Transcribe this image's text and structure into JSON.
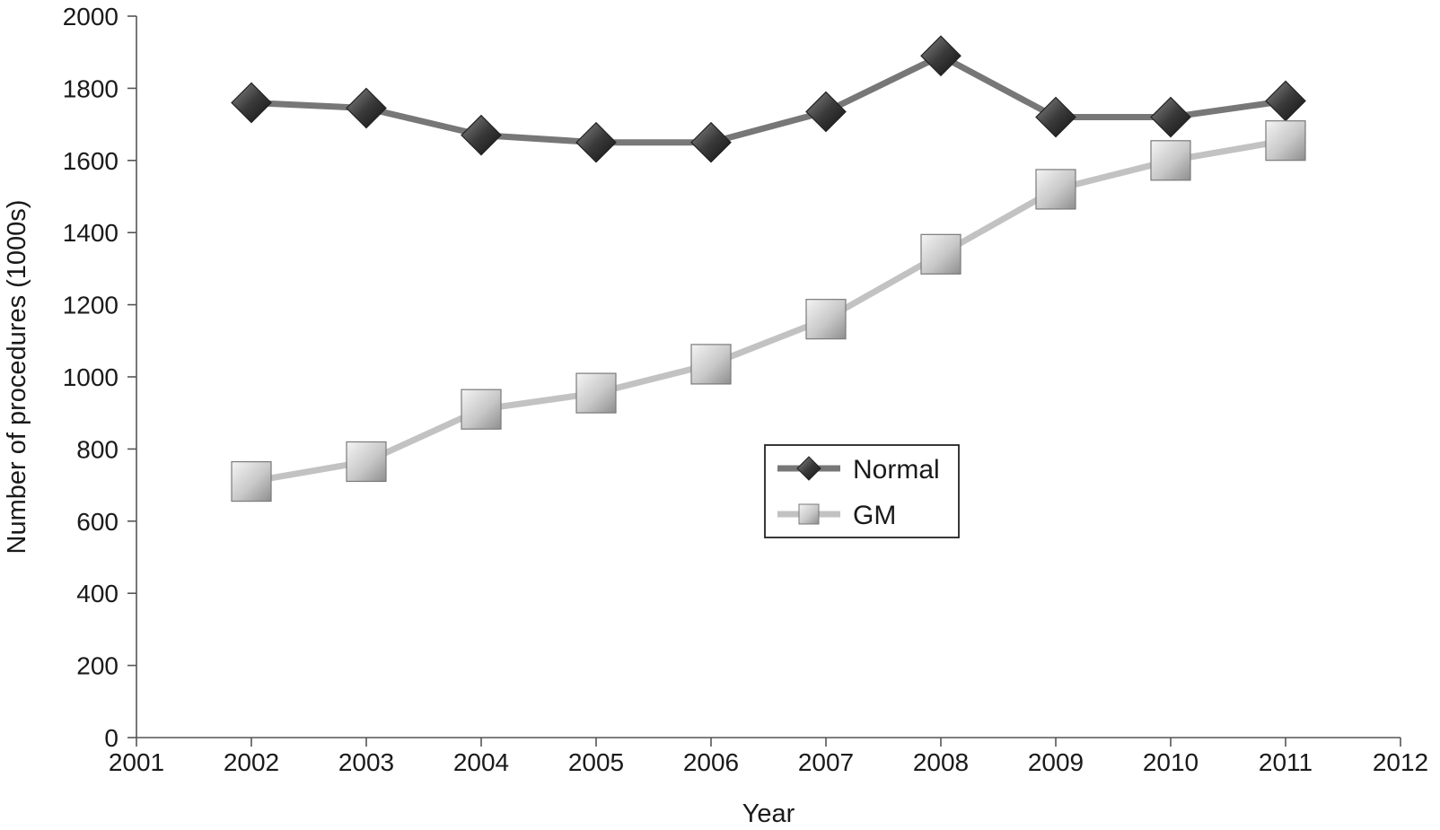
{
  "chart_data": {
    "type": "line",
    "xlabel": "Year",
    "ylabel": "Number of procedures (1000s)",
    "xlim": [
      2001,
      2012
    ],
    "ylim": [
      0,
      2000
    ],
    "x_ticks": [
      2001,
      2002,
      2003,
      2004,
      2005,
      2006,
      2007,
      2008,
      2009,
      2010,
      2011,
      2012
    ],
    "y_ticks": [
      0,
      200,
      400,
      600,
      800,
      1000,
      1200,
      1400,
      1600,
      1800,
      2000
    ],
    "x": [
      2002,
      2003,
      2004,
      2005,
      2006,
      2007,
      2008,
      2009,
      2010,
      2011
    ],
    "series": [
      {
        "name": "Normal",
        "marker": "diamond",
        "color": "#777777",
        "values": [
          1760,
          1745,
          1670,
          1650,
          1650,
          1735,
          1890,
          1720,
          1720,
          1765
        ]
      },
      {
        "name": "GM",
        "marker": "square",
        "color": "#c2c2c2",
        "values": [
          710,
          765,
          910,
          955,
          1035,
          1160,
          1340,
          1520,
          1600,
          1655
        ]
      }
    ],
    "legend": {
      "position": "center"
    },
    "grid": false
  }
}
